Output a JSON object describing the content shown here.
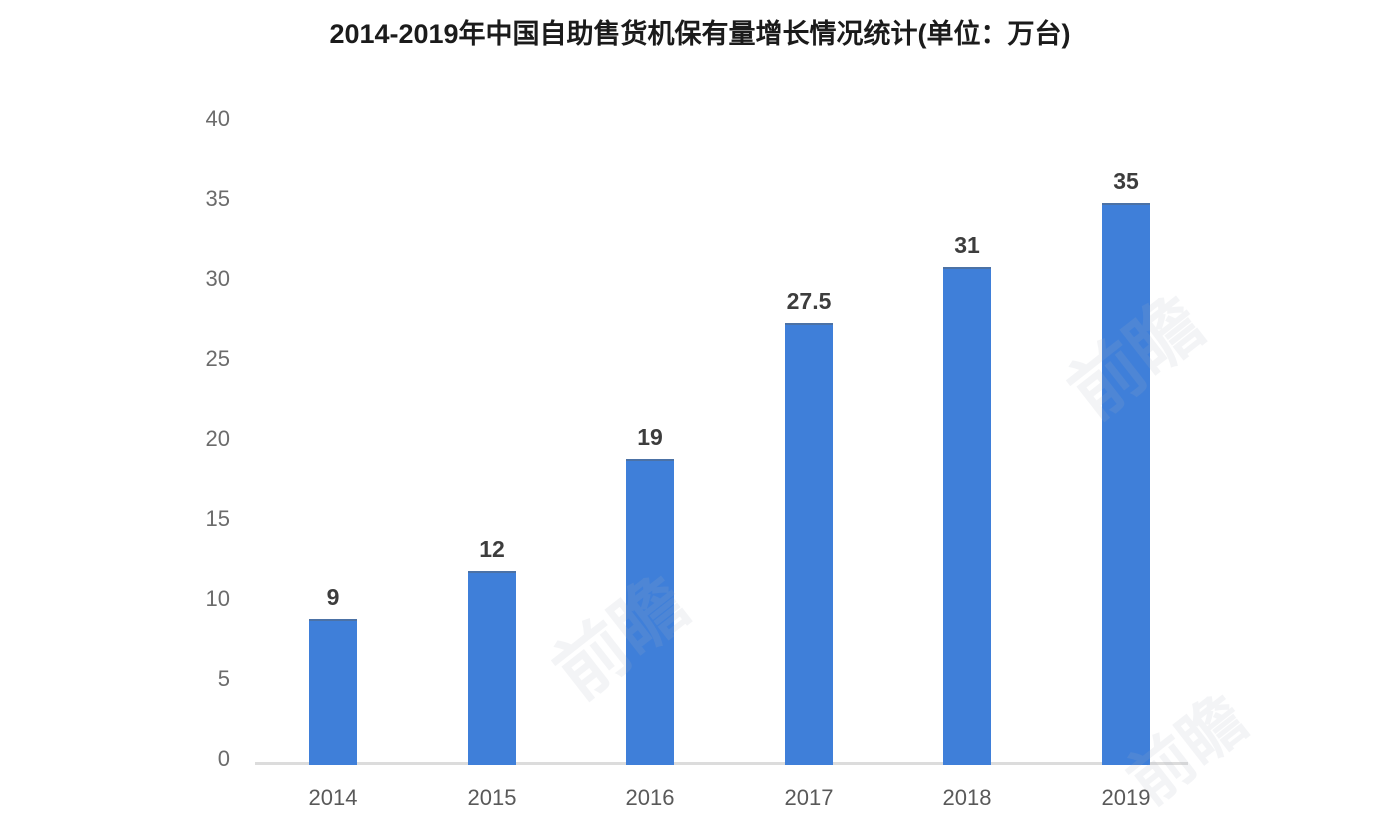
{
  "chart_data": {
    "type": "bar",
    "title": "2014-2019年中国自助售货机保有量增长情况统计(单位：万台)",
    "categories": [
      "2014",
      "2015",
      "2016",
      "2017",
      "2018",
      "2019"
    ],
    "values": [
      9,
      12,
      19,
      27.5,
      31,
      35
    ],
    "value_labels": [
      "9",
      "12",
      "19",
      "27.5",
      "31",
      "35"
    ],
    "y_ticks": [
      0,
      5,
      10,
      15,
      20,
      25,
      30,
      35,
      40
    ],
    "ylim": [
      0,
      40
    ],
    "xlabel": "",
    "ylabel": "",
    "unit": "万台",
    "grid": false,
    "legend": "none",
    "colors": {
      "bar": "#3f7fd9",
      "axis_line": "#dcdcdc",
      "y_tick_label": "#6b6b6b",
      "x_tick_label": "#595959",
      "value_label": "#3d3d3d",
      "title": "#1b1b1b"
    }
  },
  "watermark": {
    "text": "前瞻"
  }
}
